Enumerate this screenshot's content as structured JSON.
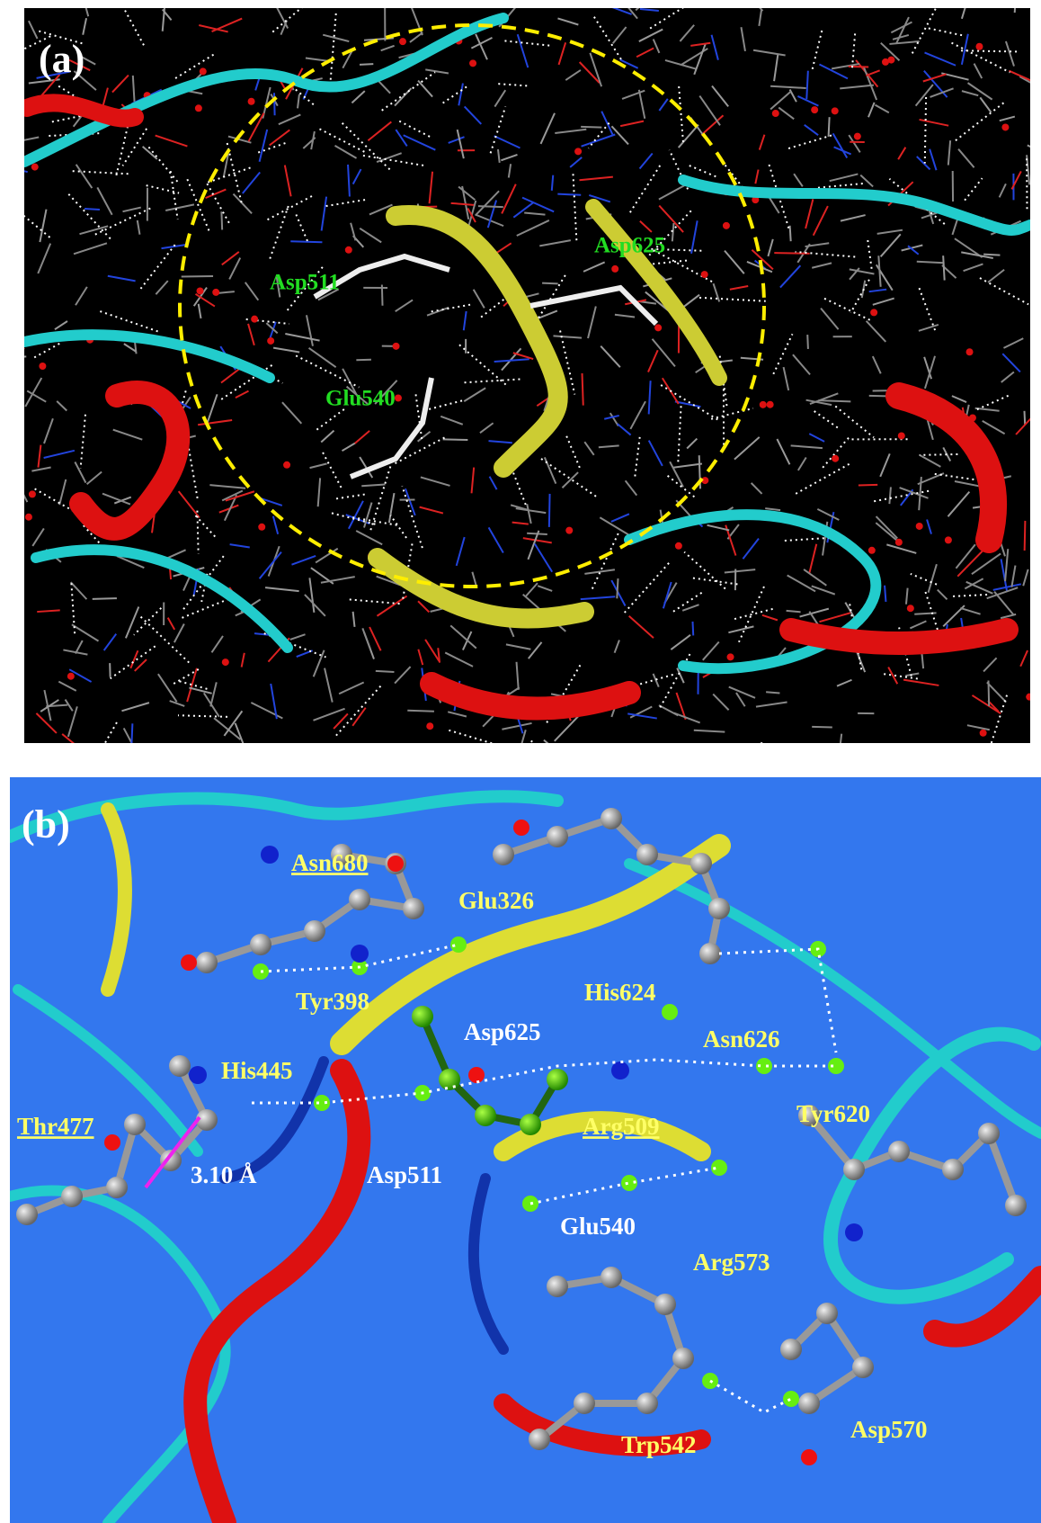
{
  "panels": [
    {
      "label": "(a)",
      "annotations": [
        "Asp511",
        "Asp625",
        "Glu540"
      ]
    },
    {
      "label": "(b)",
      "annotations": [
        "Asn680",
        "Glu326",
        "Tyr398",
        "His624",
        "Asp625",
        "Asn626",
        "His445",
        "Thr477",
        "Arg509",
        "Tyr620",
        "3.10 Å",
        "Asp511",
        "Glu540",
        "Arg573",
        "Trp542",
        "Asp570"
      ]
    }
  ]
}
